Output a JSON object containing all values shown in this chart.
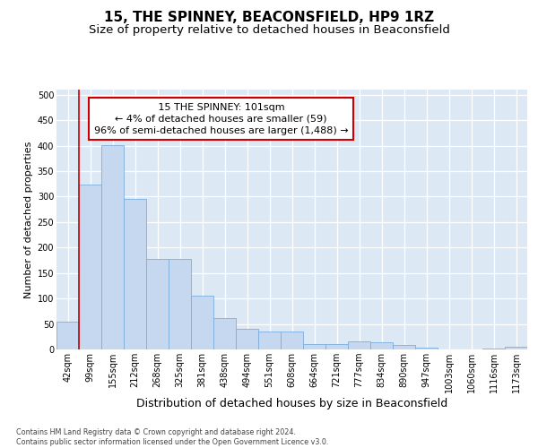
{
  "title1": "15, THE SPINNEY, BEACONSFIELD, HP9 1RZ",
  "title2": "Size of property relative to detached houses in Beaconsfield",
  "xlabel": "Distribution of detached houses by size in Beaconsfield",
  "ylabel": "Number of detached properties",
  "footnote": "Contains HM Land Registry data © Crown copyright and database right 2024.\nContains public sector information licensed under the Open Government Licence v3.0.",
  "categories": [
    "42sqm",
    "99sqm",
    "155sqm",
    "212sqm",
    "268sqm",
    "325sqm",
    "381sqm",
    "438sqm",
    "494sqm",
    "551sqm",
    "608sqm",
    "664sqm",
    "721sqm",
    "777sqm",
    "834sqm",
    "890sqm",
    "947sqm",
    "1003sqm",
    "1060sqm",
    "1116sqm",
    "1173sqm"
  ],
  "values": [
    54,
    323,
    401,
    296,
    177,
    177,
    106,
    62,
    41,
    36,
    35,
    11,
    11,
    15,
    14,
    8,
    4,
    0,
    0,
    1,
    5
  ],
  "bar_color": "#c5d8ef",
  "bar_edge_color": "#7aaedc",
  "annotation_box_color": "#ffffff",
  "annotation_box_edge": "#cc0000",
  "annotation_line_color": "#cc0000",
  "annotation_text": "   15 THE SPINNEY: 101sqm   \n← 4% of detached houses are smaller (59)\n96% of semi-detached houses are larger (1,488) →",
  "property_line_x": 1,
  "ylim": [
    0,
    510
  ],
  "yticks": [
    0,
    50,
    100,
    150,
    200,
    250,
    300,
    350,
    400,
    450,
    500
  ],
  "bg_color": "#dce9f5",
  "title1_fontsize": 11,
  "title2_fontsize": 9.5,
  "xlabel_fontsize": 9,
  "ylabel_fontsize": 8,
  "tick_fontsize": 7,
  "ann_fontsize": 8,
  "footnote_fontsize": 5.8
}
